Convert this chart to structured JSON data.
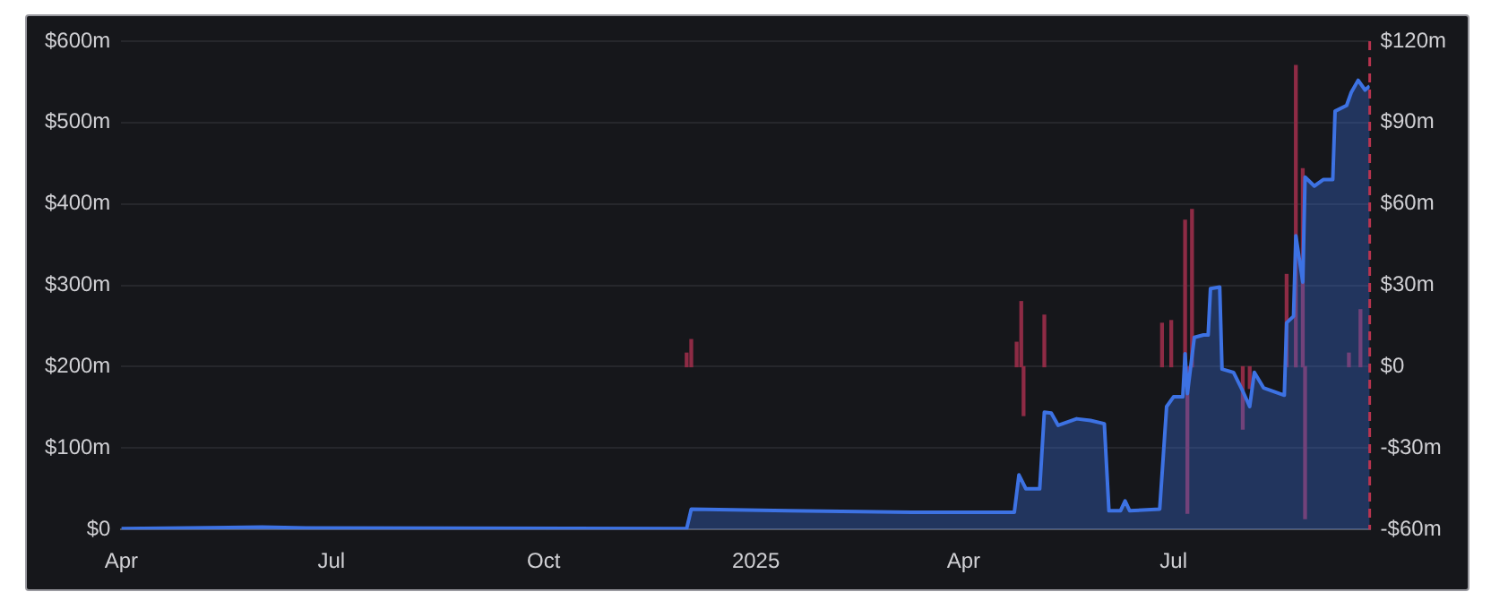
{
  "chart_data": {
    "type": "area",
    "xlim": [
      "2024-04-01",
      "2025-09-24"
    ],
    "xticks": [
      {
        "value": "2024-04-01",
        "label": "Apr"
      },
      {
        "value": "2024-07-01",
        "label": "Jul"
      },
      {
        "value": "2024-10-01",
        "label": "Oct"
      },
      {
        "value": "2025-01-01",
        "label": "2025"
      },
      {
        "value": "2025-04-01",
        "label": "Apr"
      },
      {
        "value": "2025-07-01",
        "label": "Jul"
      }
    ],
    "ylim": [
      0,
      600
    ],
    "yticks": [
      {
        "value": 0,
        "label": "$0"
      },
      {
        "value": 100,
        "label": "$100m"
      },
      {
        "value": 200,
        "label": "$200m"
      },
      {
        "value": 300,
        "label": "$300m"
      },
      {
        "value": 400,
        "label": "$400m"
      },
      {
        "value": 500,
        "label": "$500m"
      },
      {
        "value": 600,
        "label": "$600m"
      }
    ],
    "y2lim": [
      -60,
      120
    ],
    "y2ticks": [
      {
        "value": -60,
        "label": "-$60m"
      },
      {
        "value": -30,
        "label": "-$30m"
      },
      {
        "value": 0,
        "label": "$0"
      },
      {
        "value": 30,
        "label": "$30m"
      },
      {
        "value": 60,
        "label": "$60m"
      },
      {
        "value": 90,
        "label": "$90m"
      },
      {
        "value": 120,
        "label": "$120m"
      }
    ],
    "grid": "y",
    "series": [
      {
        "color": "#3d72e3",
        "x": [
          "2024-04-01",
          "2024-06-01",
          "2024-06-20",
          "2024-12-02",
          "2024-12-04",
          "2025-01-15",
          "2025-02-15",
          "2025-03-15",
          "2025-04-23",
          "2025-04-25",
          "2025-04-28",
          "2025-05-04",
          "2025-05-06",
          "2025-05-09",
          "2025-05-12",
          "2025-05-20",
          "2025-05-26",
          "2025-06-01",
          "2025-06-03",
          "2025-06-08",
          "2025-06-10",
          "2025-06-12",
          "2025-06-25",
          "2025-06-28",
          "2025-07-01",
          "2025-07-05",
          "2025-07-06",
          "2025-07-07",
          "2025-07-10",
          "2025-07-14",
          "2025-07-16",
          "2025-07-17",
          "2025-07-21",
          "2025-07-22",
          "2025-07-27",
          "2025-07-31",
          "2025-08-03",
          "2025-08-05",
          "2025-08-09",
          "2025-08-18",
          "2025-08-19",
          "2025-08-22",
          "2025-08-23",
          "2025-08-26",
          "2025-08-27",
          "2025-08-31",
          "2025-09-04",
          "2025-09-08",
          "2025-09-09",
          "2025-09-14",
          "2025-09-16",
          "2025-09-19",
          "2025-09-22",
          "2025-09-24"
        ],
        "values": [
          1,
          3,
          2,
          1,
          25,
          23,
          22,
          21,
          21,
          67,
          50,
          50,
          144,
          143,
          128,
          136,
          134,
          130,
          23,
          23,
          35,
          23,
          25,
          151,
          163,
          163,
          216,
          167,
          236,
          239,
          239,
          296,
          298,
          197,
          193,
          170,
          151,
          193,
          174,
          165,
          254,
          262,
          361,
          304,
          433,
          422,
          430,
          430,
          514,
          521,
          537,
          552,
          540,
          545
        ]
      },
      {
        "type": "bar",
        "axis": "y2",
        "color": "#8e2b45",
        "x": [
          "2024-12-02",
          "2024-12-04",
          "2025-04-24",
          "2025-04-26",
          "2025-04-27",
          "2025-05-06",
          "2025-06-26",
          "2025-06-30",
          "2025-07-06",
          "2025-07-07",
          "2025-07-09",
          "2025-07-31",
          "2025-08-03",
          "2025-08-19",
          "2025-08-23",
          "2025-08-26",
          "2025-08-27",
          "2025-09-15",
          "2025-09-20"
        ],
        "values": [
          5,
          10,
          9,
          24,
          -18,
          19,
          16,
          17,
          54,
          -54,
          58,
          -23,
          -8,
          34,
          111,
          73,
          -56,
          5,
          21
        ]
      }
    ],
    "ref_lines": [
      {
        "axis": "x",
        "value": "2025-09-24",
        "color": "#b8334f",
        "line_style": "dashed"
      }
    ]
  }
}
